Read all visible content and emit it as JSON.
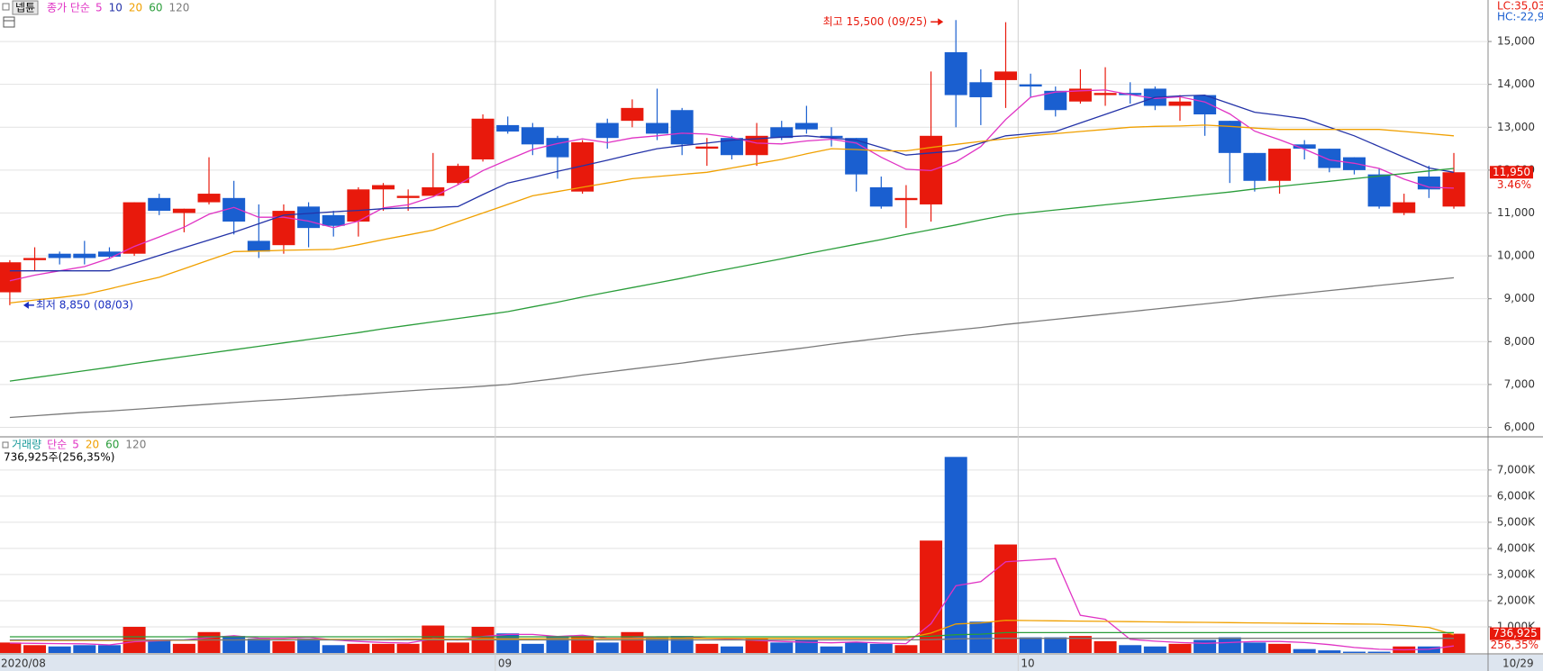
{
  "chart_data": [
    {
      "type": "candlestick",
      "name": "넵튠",
      "ma_label": "종가 단순",
      "corner_labels": [
        "LC:35,03",
        "HC:-22,9"
      ],
      "high_annotation": "최고 15,500 (09/25)",
      "low_annotation": "최저 8,850 (08/03)",
      "last_value_label": "11,950",
      "change_label": "3.46%",
      "up_color": "#e8190c",
      "down_color": "#1a5fd0",
      "categories": [
        "2020/08",
        null,
        null,
        null,
        null,
        null,
        null,
        null,
        null,
        null,
        null,
        null,
        null,
        null,
        null,
        null,
        null,
        null,
        null,
        null,
        "09",
        null,
        null,
        null,
        null,
        null,
        null,
        null,
        null,
        null,
        null,
        null,
        null,
        null,
        null,
        null,
        null,
        null,
        null,
        null,
        null,
        "10",
        null,
        null,
        null,
        null,
        null,
        null,
        null,
        null,
        null,
        null,
        null,
        null,
        null,
        null,
        null,
        null,
        "10/29"
      ],
      "open": [
        9150,
        9900,
        10050,
        10050,
        10100,
        10050,
        11350,
        11000,
        11250,
        11350,
        10350,
        10250,
        11150,
        10950,
        10800,
        11550,
        11350,
        11400,
        11700,
        12250,
        13050,
        13000,
        12750,
        11500,
        13100,
        13150,
        13100,
        13400,
        12500,
        12750,
        12350,
        13000,
        13100,
        12800,
        12750,
        11600,
        11300,
        11200,
        14750,
        14050,
        14100,
        14000,
        13850,
        13600,
        13750,
        13800,
        13900,
        13500,
        13750,
        13150,
        12400,
        11750,
        12600,
        12500,
        12300,
        11900,
        11000,
        11850,
        11150
      ],
      "high": [
        9900,
        10200,
        10100,
        10350,
        10200,
        11250,
        11450,
        11100,
        12300,
        11750,
        11200,
        11200,
        11250,
        11050,
        11600,
        11700,
        11550,
        12400,
        12150,
        13300,
        13250,
        13100,
        12800,
        12700,
        13200,
        13650,
        13900,
        13450,
        12750,
        12800,
        13100,
        13150,
        13500,
        13000,
        12750,
        11850,
        11650,
        14300,
        15500,
        14350,
        15450,
        14250,
        13950,
        14350,
        14400,
        14050,
        13950,
        13750,
        13750,
        13150,
        12400,
        12500,
        12700,
        12500,
        12300,
        12050,
        11450,
        12100,
        12400
      ],
      "low": [
        8850,
        9650,
        9800,
        9800,
        9950,
        10000,
        10950,
        10550,
        11200,
        10500,
        9950,
        10050,
        10200,
        10450,
        10450,
        11050,
        11050,
        11400,
        11650,
        12200,
        12850,
        12350,
        11800,
        11450,
        12500,
        13000,
        12700,
        12350,
        12100,
        12250,
        12100,
        12700,
        12850,
        12550,
        11500,
        11100,
        10650,
        10800,
        13000,
        13050,
        13450,
        13700,
        13250,
        13550,
        13500,
        13550,
        13400,
        13150,
        12800,
        11700,
        11500,
        11450,
        12250,
        11950,
        11900,
        11100,
        10950,
        11350,
        11100
      ],
      "close": [
        9850,
        9950,
        9950,
        9950,
        9980,
        11250,
        11050,
        11100,
        11450,
        10800,
        10100,
        11050,
        10650,
        10700,
        11550,
        11650,
        11400,
        11600,
        12100,
        13200,
        12900,
        12600,
        12300,
        12650,
        12750,
        13450,
        12850,
        12600,
        12550,
        12350,
        12800,
        12750,
        12950,
        12750,
        11900,
        11150,
        11350,
        12800,
        13750,
        13700,
        14300,
        13950,
        13400,
        13900,
        13800,
        13750,
        13500,
        13600,
        13300,
        12400,
        11750,
        12500,
        12500,
        12050,
        12000,
        11150,
        11250,
        11550,
        11950
      ],
      "series": [
        {
          "name": "5",
          "color": "#e033c4",
          "values": [
            9420,
            9550,
            9650,
            9750,
            9940,
            10220,
            10440,
            10670,
            10970,
            11130,
            10900,
            10900,
            10810,
            10660,
            10810,
            11120,
            11190,
            11380,
            11660,
            11990,
            12240,
            12480,
            12620,
            12730,
            12640,
            12750,
            12800,
            12860,
            12840,
            12760,
            12630,
            12610,
            12680,
            12720,
            12630,
            12300,
            12020,
            11990,
            12190,
            12550,
            13180,
            13700,
            13820,
            13850,
            13870,
            13760,
            13670,
            13710,
            13590,
            13310,
            12910,
            12710,
            12490,
            12240,
            12160,
            12040,
            11790,
            11600,
            11580
          ]
        },
        {
          "name": "10",
          "color": "#2433a8",
          "values": [
            9650,
            9650,
            9650,
            9650,
            9650,
            9830,
            10010,
            10190,
            10370,
            10550,
            10750,
            10950,
            10990,
            11030,
            11060,
            11100,
            11120,
            11130,
            11150,
            11430,
            11700,
            11830,
            11970,
            12100,
            12230,
            12370,
            12500,
            12570,
            12630,
            12700,
            12730,
            12770,
            12800,
            12750,
            12700,
            12530,
            12350,
            12400,
            12450,
            12630,
            12800,
            12850,
            12900,
            13100,
            13300,
            13500,
            13700,
            13730,
            13750,
            13550,
            13350,
            13280,
            13200,
            13000,
            12800,
            12550,
            12300,
            12050,
            11950
          ]
        },
        {
          "name": "20",
          "color": "#f0a000",
          "values": [
            8900,
            8970,
            9030,
            9100,
            9230,
            9370,
            9500,
            9700,
            9900,
            10100,
            10110,
            10130,
            10140,
            10150,
            10260,
            10380,
            10490,
            10600,
            10800,
            11000,
            11200,
            11400,
            11500,
            11600,
            11700,
            11800,
            11850,
            11900,
            11950,
            12050,
            12150,
            12250,
            12380,
            12500,
            12480,
            12450,
            12450,
            12530,
            12600,
            12670,
            12730,
            12800,
            12850,
            12900,
            12950,
            13000,
            13020,
            13030,
            13050,
            13020,
            12980,
            12950,
            12950,
            12950,
            12950,
            12950,
            12900,
            12850,
            12800
          ]
        },
        {
          "name": "60",
          "color": "#2a9d3a",
          "values": [
            7080,
            7160,
            7240,
            7320,
            7400,
            7490,
            7570,
            7650,
            7730,
            7810,
            7890,
            7970,
            8050,
            8130,
            8210,
            8300,
            8380,
            8460,
            8540,
            8620,
            8700,
            8810,
            8920,
            9040,
            9150,
            9260,
            9370,
            9480,
            9600,
            9710,
            9820,
            9930,
            10050,
            10160,
            10270,
            10380,
            10500,
            10610,
            10720,
            10840,
            10950,
            11010,
            11070,
            11130,
            11190,
            11250,
            11310,
            11370,
            11430,
            11490,
            11560,
            11620,
            11680,
            11740,
            11800,
            11860,
            11920,
            11980,
            12040
          ]
        },
        {
          "name": "120",
          "color": "#7a7a7a",
          "values": [
            6230,
            6270,
            6310,
            6350,
            6380,
            6420,
            6460,
            6500,
            6540,
            6580,
            6620,
            6650,
            6690,
            6730,
            6770,
            6810,
            6850,
            6890,
            6920,
            6960,
            7000,
            7070,
            7140,
            7220,
            7290,
            7360,
            7430,
            7500,
            7580,
            7650,
            7720,
            7790,
            7860,
            7940,
            8010,
            8080,
            8150,
            8210,
            8270,
            8330,
            8400,
            8460,
            8520,
            8580,
            8640,
            8700,
            8760,
            8820,
            8880,
            8940,
            9010,
            9070,
            9130,
            9190,
            9250,
            9310,
            9370,
            9430,
            9490
          ]
        }
      ],
      "ylim": [
        5800,
        15800
      ],
      "yticks": [
        {
          "value": 6000,
          "label": "6,000"
        },
        {
          "value": 7000,
          "label": "7,000"
        },
        {
          "value": 8000,
          "label": "8,000"
        },
        {
          "value": 9000,
          "label": "9,000"
        },
        {
          "value": 10000,
          "label": "10,000"
        },
        {
          "value": 11000,
          "label": "11,000"
        },
        {
          "value": 12000,
          "label": "12,000"
        },
        {
          "value": 13000,
          "label": "13,000"
        },
        {
          "value": 14000,
          "label": "14,000"
        },
        {
          "value": 15000,
          "label": "15,000"
        }
      ],
      "grid": true
    },
    {
      "type": "bar",
      "title": "거래량",
      "ma_label": "단순",
      "summary": "736,925주(256,35%)",
      "last_value_label": "736,925",
      "change_label": "256,35%",
      "values": [
        400,
        300,
        250,
        300,
        300,
        1000,
        500,
        350,
        800,
        650,
        550,
        450,
        550,
        300,
        350,
        350,
        350,
        1050,
        400,
        1000,
        750,
        350,
        650,
        650,
        400,
        800,
        600,
        650,
        350,
        250,
        550,
        400,
        500,
        250,
        400,
        350,
        300,
        4300,
        7500,
        1200,
        4150,
        600,
        600,
        650,
        450,
        300,
        250,
        350,
        500,
        600,
        400,
        350,
        150,
        100,
        50,
        50,
        250,
        250,
        736.925
      ],
      "series": [
        {
          "name": "5",
          "color": "#e033c4",
          "values": [
            380,
            370,
            360,
            350,
            310,
            430,
            470,
            500,
            590,
            660,
            570,
            560,
            600,
            500,
            440,
            400,
            380,
            540,
            500,
            630,
            710,
            710,
            630,
            680,
            560,
            570,
            620,
            620,
            560,
            530,
            480,
            440,
            410,
            390,
            420,
            380,
            360,
            1120,
            2570,
            2730,
            3490,
            3550,
            3610,
            1440,
            1290,
            520,
            450,
            400,
            370,
            400,
            440,
            440,
            400,
            320,
            210,
            140,
            120,
            140,
            270
          ]
        },
        {
          "name": "20",
          "color": "#f0a000",
          "values": [
            480,
            480,
            480,
            480,
            480,
            490,
            490,
            490,
            500,
            500,
            510,
            510,
            510,
            520,
            520,
            520,
            530,
            530,
            530,
            540,
            540,
            540,
            550,
            550,
            550,
            550,
            560,
            560,
            560,
            560,
            560,
            560,
            560,
            560,
            560,
            560,
            560,
            760,
            1110,
            1150,
            1250,
            1240,
            1230,
            1220,
            1210,
            1200,
            1190,
            1180,
            1170,
            1160,
            1150,
            1140,
            1130,
            1120,
            1110,
            1100,
            1050,
            980,
            700
          ]
        },
        {
          "name": "60",
          "color": "#2a9d3a",
          "values": [
            620,
            620,
            620,
            620,
            620,
            620,
            620,
            620,
            620,
            620,
            620,
            620,
            620,
            620,
            620,
            620,
            620,
            620,
            620,
            620,
            620,
            620,
            620,
            620,
            620,
            620,
            620,
            620,
            620,
            620,
            620,
            620,
            620,
            620,
            620,
            620,
            620,
            640,
            700,
            720,
            780,
            780,
            780,
            780,
            780,
            780,
            780,
            780,
            780,
            780,
            780,
            780,
            780,
            780,
            780,
            780,
            780,
            780,
            780
          ]
        },
        {
          "name": "120",
          "color": "#7a7a7a",
          "values": [
            500,
            500,
            500,
            500,
            500,
            500,
            500,
            500,
            500,
            500,
            500,
            500,
            500,
            500,
            500,
            500,
            500,
            500,
            500,
            500,
            500,
            500,
            500,
            500,
            500,
            500,
            500,
            500,
            500,
            500,
            500,
            500,
            500,
            500,
            500,
            500,
            500,
            510,
            540,
            550,
            560,
            560,
            560,
            560,
            560,
            560,
            560,
            560,
            560,
            560,
            560,
            560,
            560,
            560,
            560,
            560,
            560,
            560,
            560
          ]
        }
      ],
      "ylim": [
        0,
        8200
      ],
      "yticks": [
        {
          "value": 1000,
          "label": "1,000K"
        },
        {
          "value": 2000,
          "label": "2,000K"
        },
        {
          "value": 3000,
          "label": "3,000K"
        },
        {
          "value": 4000,
          "label": "4,000K"
        },
        {
          "value": 5000,
          "label": "5,000K"
        },
        {
          "value": 6000,
          "label": "6,000K"
        },
        {
          "value": 7000,
          "label": "7,000K"
        }
      ],
      "grid": true
    }
  ]
}
